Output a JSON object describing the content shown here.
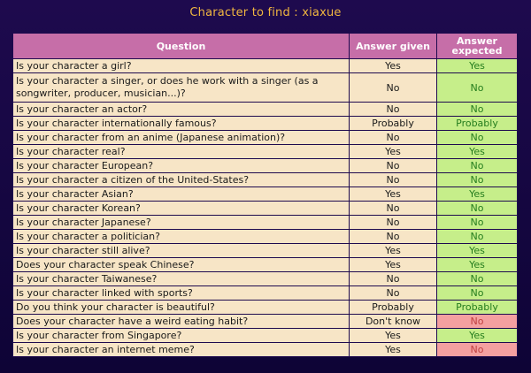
{
  "page": {
    "title": "Character to find : xiaxue"
  },
  "table": {
    "headers": {
      "question": "Question",
      "given": "Answer given",
      "expected": "Answer expected"
    },
    "rows": [
      {
        "q": "Is your character a girl?",
        "given": "Yes",
        "expected": "Yes",
        "match": true
      },
      {
        "q": "Is your character a singer, or does he work with a singer (as a songwriter, producer, musician...)?",
        "given": "No",
        "expected": "No",
        "match": true
      },
      {
        "q": "Is your character an actor?",
        "given": "No",
        "expected": "No",
        "match": true
      },
      {
        "q": "Is your character internationally famous?",
        "given": "Probably",
        "expected": "Probably",
        "match": true
      },
      {
        "q": "Is your character from an anime (Japanese animation)?",
        "given": "No",
        "expected": "No",
        "match": true
      },
      {
        "q": "Is your character real?",
        "given": "Yes",
        "expected": "Yes",
        "match": true
      },
      {
        "q": "Is your character European?",
        "given": "No",
        "expected": "No",
        "match": true
      },
      {
        "q": "Is your character a citizen of the United-States?",
        "given": "No",
        "expected": "No",
        "match": true
      },
      {
        "q": "Is your character Asian?",
        "given": "Yes",
        "expected": "Yes",
        "match": true
      },
      {
        "q": "Is your character Korean?",
        "given": "No",
        "expected": "No",
        "match": true
      },
      {
        "q": "Is your character Japanese?",
        "given": "No",
        "expected": "No",
        "match": true
      },
      {
        "q": "Is your character a politician?",
        "given": "No",
        "expected": "No",
        "match": true
      },
      {
        "q": "Is your character still alive?",
        "given": "Yes",
        "expected": "Yes",
        "match": true
      },
      {
        "q": "Does your character speak Chinese?",
        "given": "Yes",
        "expected": "Yes",
        "match": true
      },
      {
        "q": "Is your character Taiwanese?",
        "given": "No",
        "expected": "No",
        "match": true
      },
      {
        "q": "Is your character linked with sports?",
        "given": "No",
        "expected": "No",
        "match": true
      },
      {
        "q": "Do you think your character is beautiful?",
        "given": "Probably",
        "expected": "Probably",
        "match": true
      },
      {
        "q": "Does your character have a weird eating habit?",
        "given": "Don't know",
        "expected": "No",
        "match": false
      },
      {
        "q": "Is your character from Singapore?",
        "given": "Yes",
        "expected": "Yes",
        "match": true
      },
      {
        "q": "Is your character an internet meme?",
        "given": "Yes",
        "expected": "No",
        "match": false
      }
    ]
  },
  "colors": {
    "background": "#1e0a4e",
    "title": "#f0b640",
    "header": "#c66ea8",
    "row": "#f7e5c6",
    "match": "#c6ee8a",
    "mismatch": "#f4a0a0"
  }
}
